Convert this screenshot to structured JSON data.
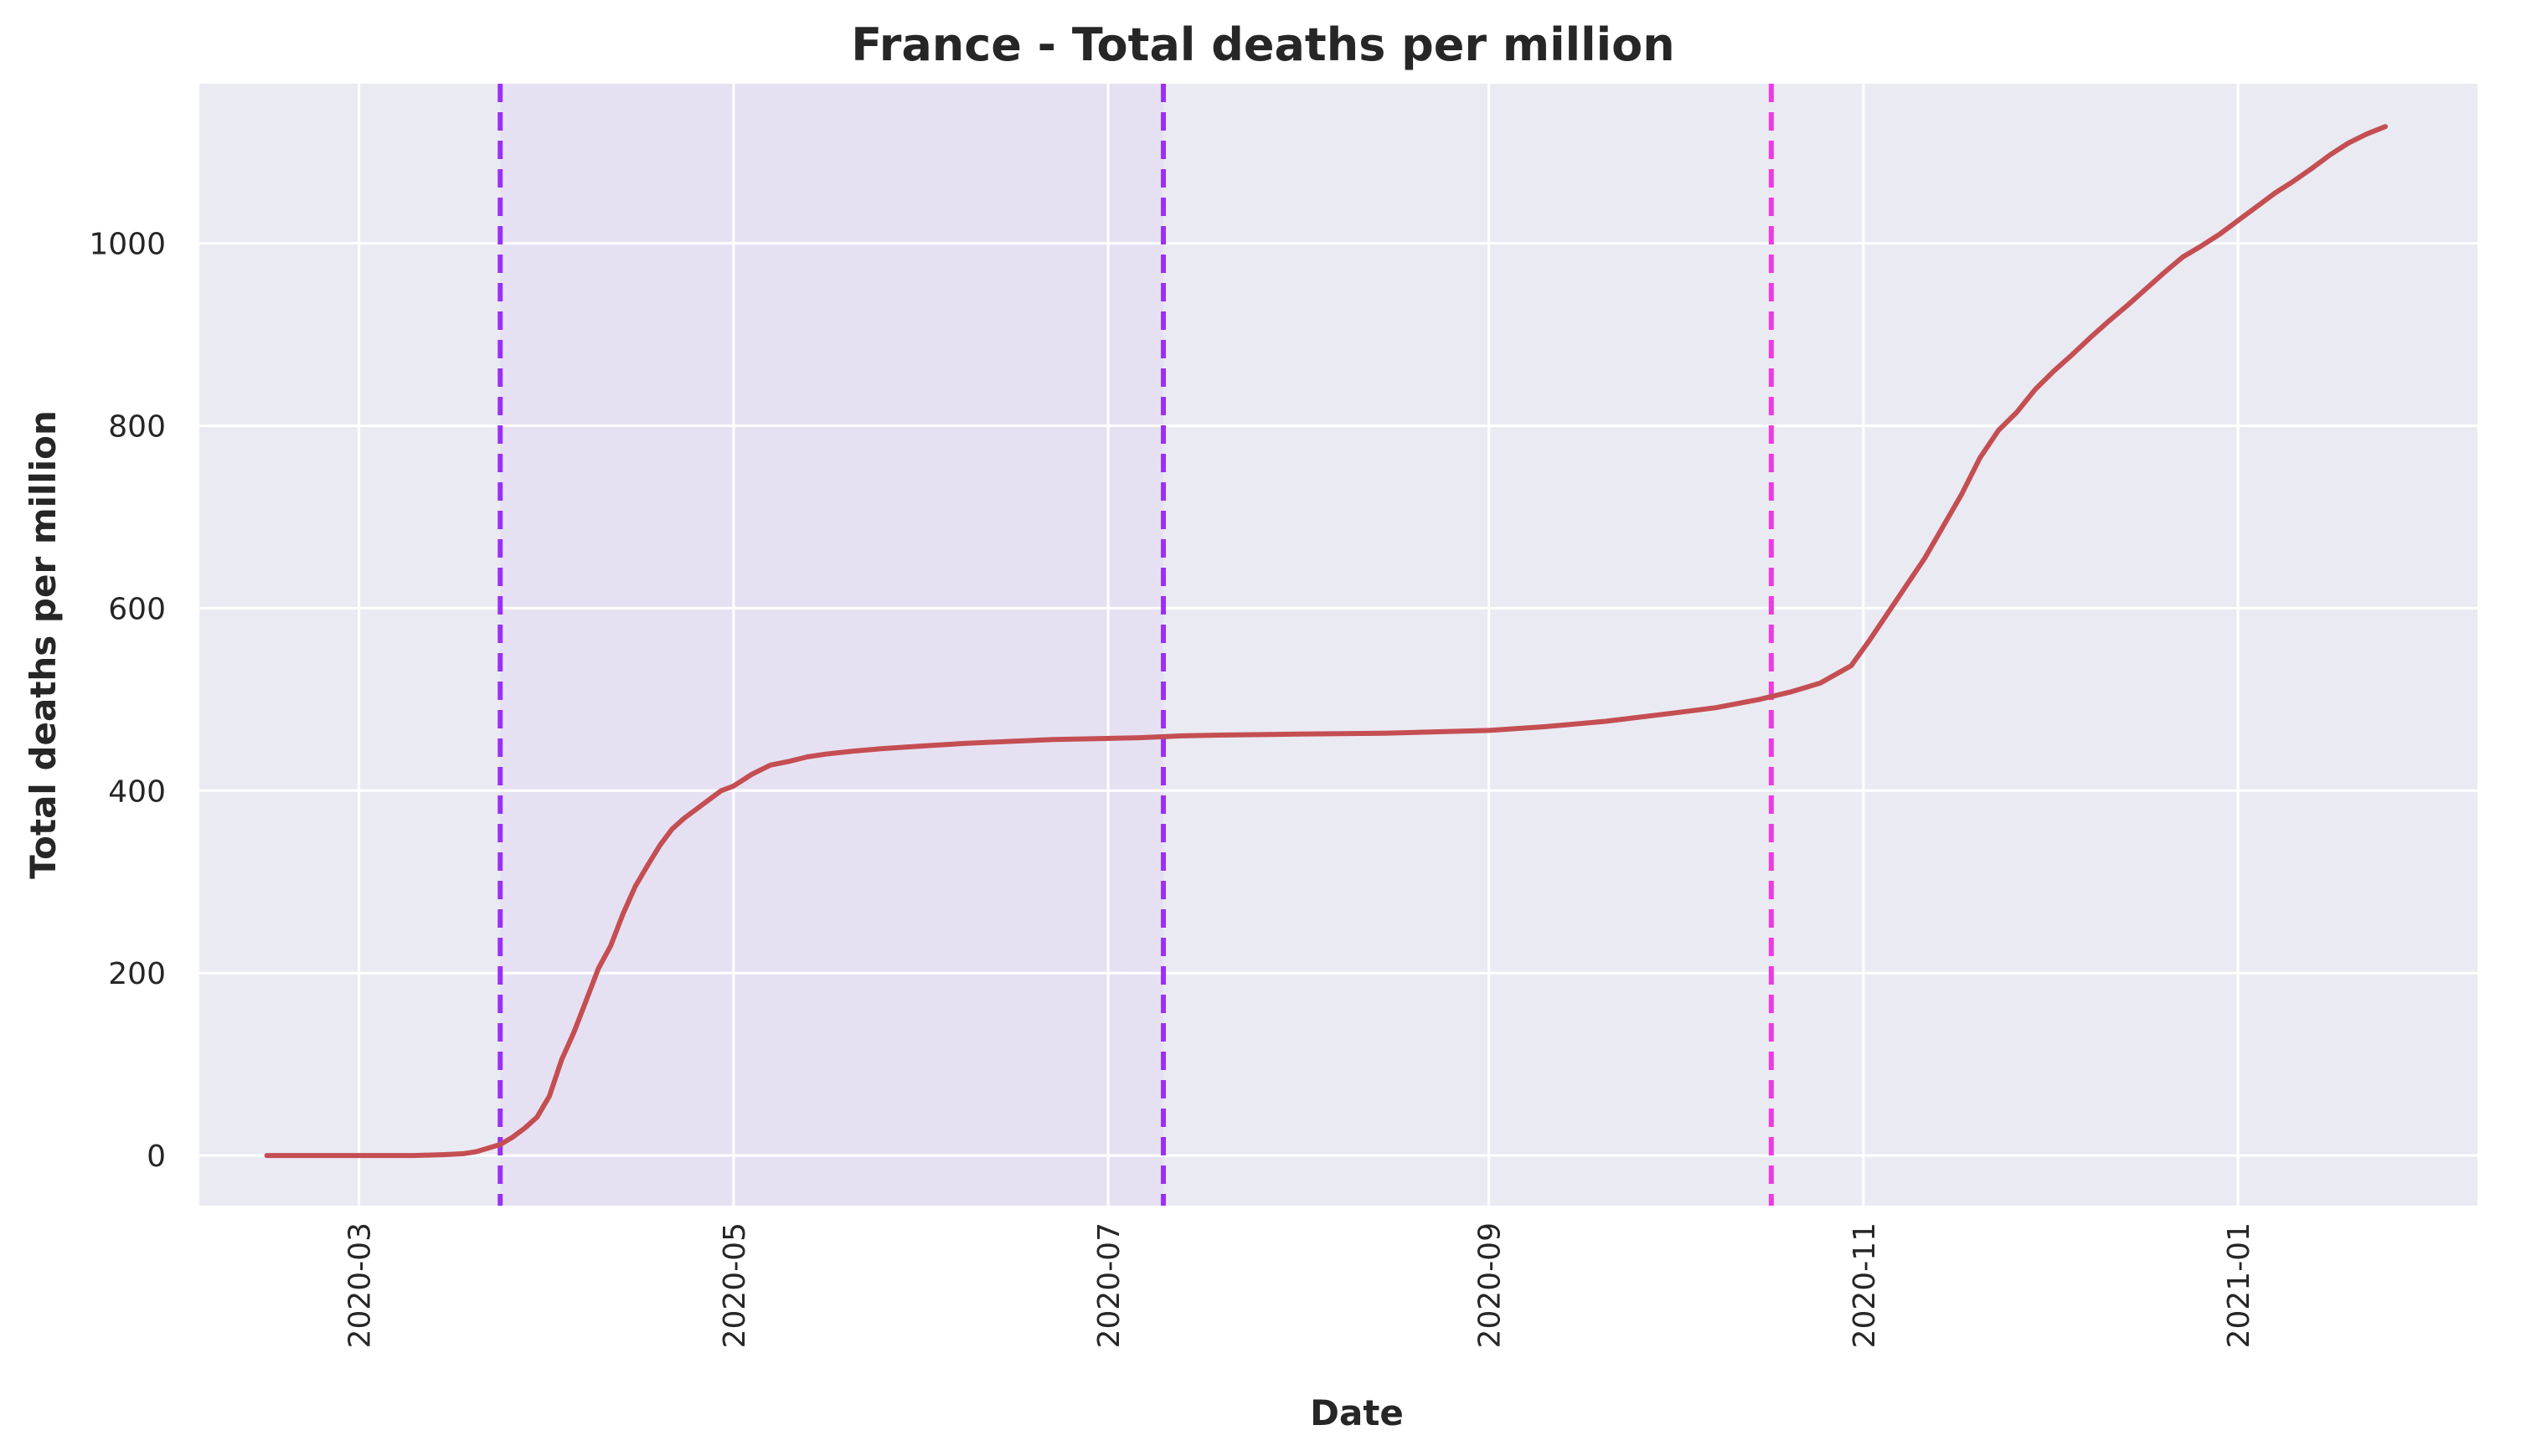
{
  "chart_data": {
    "type": "line",
    "title": "France - Total deaths per million",
    "xlabel": "Date",
    "ylabel": "Total deaths per million",
    "xlim": [
      "2020-02-04",
      "2021-02-09"
    ],
    "ylim": [
      -55,
      1175
    ],
    "grid": true,
    "background_color": "#eaeaf2",
    "grid_color": "#ffffff",
    "x_ticks": [
      "2020-03",
      "2020-05",
      "2020-07",
      "2020-09",
      "2020-11",
      "2021-01"
    ],
    "x_tick_dates": [
      "2020-03-01",
      "2020-05-01",
      "2020-07-01",
      "2020-09-01",
      "2020-11-01",
      "2021-01-01"
    ],
    "y_ticks": [
      0,
      200,
      400,
      600,
      800,
      1000
    ],
    "shaded_region": {
      "start": "2020-03-24",
      "end": "2020-07-10",
      "color": "#e6e1f2"
    },
    "vertical_lines": [
      {
        "date": "2020-03-24",
        "color": "#9b30f5",
        "style": "dashed"
      },
      {
        "date": "2020-07-10",
        "color": "#9b30f5",
        "style": "dashed"
      },
      {
        "date": "2020-10-17",
        "color": "#f03ae0",
        "style": "dashed"
      }
    ],
    "series": [
      {
        "color": "#c44e52",
        "x": [
          "2020-02-15",
          "2020-03-01",
          "2020-03-10",
          "2020-03-15",
          "2020-03-18",
          "2020-03-20",
          "2020-03-22",
          "2020-03-24",
          "2020-03-26",
          "2020-03-28",
          "2020-03-30",
          "2020-04-01",
          "2020-04-03",
          "2020-04-05",
          "2020-04-07",
          "2020-04-09",
          "2020-04-11",
          "2020-04-13",
          "2020-04-15",
          "2020-04-17",
          "2020-04-19",
          "2020-04-21",
          "2020-04-23",
          "2020-04-25",
          "2020-04-27",
          "2020-04-29",
          "2020-05-01",
          "2020-05-04",
          "2020-05-07",
          "2020-05-10",
          "2020-05-13",
          "2020-05-16",
          "2020-05-20",
          "2020-05-25",
          "2020-06-01",
          "2020-06-08",
          "2020-06-15",
          "2020-06-22",
          "2020-06-29",
          "2020-07-06",
          "2020-07-13",
          "2020-07-20",
          "2020-08-01",
          "2020-08-15",
          "2020-09-01",
          "2020-09-10",
          "2020-09-20",
          "2020-10-01",
          "2020-10-08",
          "2020-10-15",
          "2020-10-20",
          "2020-10-25",
          "2020-10-30",
          "2020-11-02",
          "2020-11-05",
          "2020-11-08",
          "2020-11-11",
          "2020-11-14",
          "2020-11-17",
          "2020-11-20",
          "2020-11-23",
          "2020-11-26",
          "2020-11-29",
          "2020-12-02",
          "2020-12-05",
          "2020-12-08",
          "2020-12-11",
          "2020-12-14",
          "2020-12-17",
          "2020-12-20",
          "2020-12-23",
          "2020-12-26",
          "2020-12-29",
          "2021-01-01",
          "2021-01-04",
          "2021-01-07",
          "2021-01-10",
          "2021-01-13",
          "2021-01-16",
          "2021-01-19",
          "2021-01-22",
          "2021-01-25"
        ],
        "values": [
          0,
          0,
          0,
          1,
          2,
          4,
          8,
          12,
          20,
          30,
          42,
          65,
          105,
          135,
          170,
          205,
          230,
          265,
          295,
          318,
          340,
          358,
          370,
          380,
          390,
          400,
          405,
          418,
          428,
          432,
          437,
          440,
          443,
          446,
          449,
          452,
          454,
          456,
          457,
          458,
          460,
          461,
          462,
          463,
          466,
          470,
          476,
          485,
          491,
          500,
          508,
          518,
          537,
          565,
          595,
          625,
          655,
          690,
          725,
          765,
          795,
          815,
          840,
          860,
          878,
          897,
          915,
          932,
          950,
          968,
          985,
          997,
          1010,
          1025,
          1040,
          1055,
          1068,
          1082,
          1097,
          1110,
          1120,
          1128
        ]
      }
    ]
  }
}
